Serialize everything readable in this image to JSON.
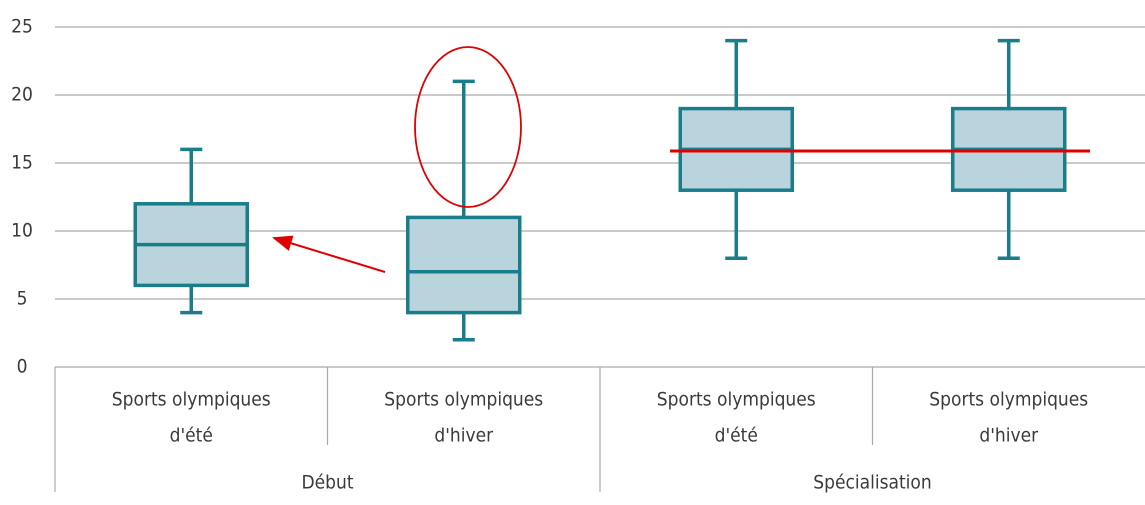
{
  "chart_data": {
    "type": "boxplot",
    "ylim": [
      0,
      25
    ],
    "yticks": [
      0,
      5,
      10,
      15,
      20,
      25
    ],
    "grid": true,
    "box_color": "#b9d4dc",
    "line_color": "#1a7d8a",
    "groups": [
      {
        "label": "Début",
        "boxes": [
          {
            "category": [
              "Sports olympiques",
              "d'été"
            ],
            "low": 4,
            "q1": 6,
            "median": 9,
            "q3": 12,
            "high": 16
          },
          {
            "category": [
              "Sports olympiques",
              "d'hiver"
            ],
            "low": 2,
            "q1": 4,
            "median": 7,
            "q3": 11,
            "high": 21
          }
        ]
      },
      {
        "label": "Spécialisation",
        "boxes": [
          {
            "category": [
              "Sports olympiques",
              "d'été"
            ],
            "low": 8,
            "q1": 13,
            "median": 16,
            "q3": 19,
            "high": 24
          },
          {
            "category": [
              "Sports olympiques",
              "d'hiver"
            ],
            "low": 8,
            "q1": 13,
            "median": 16,
            "q3": 19,
            "high": 24
          }
        ]
      }
    ]
  }
}
